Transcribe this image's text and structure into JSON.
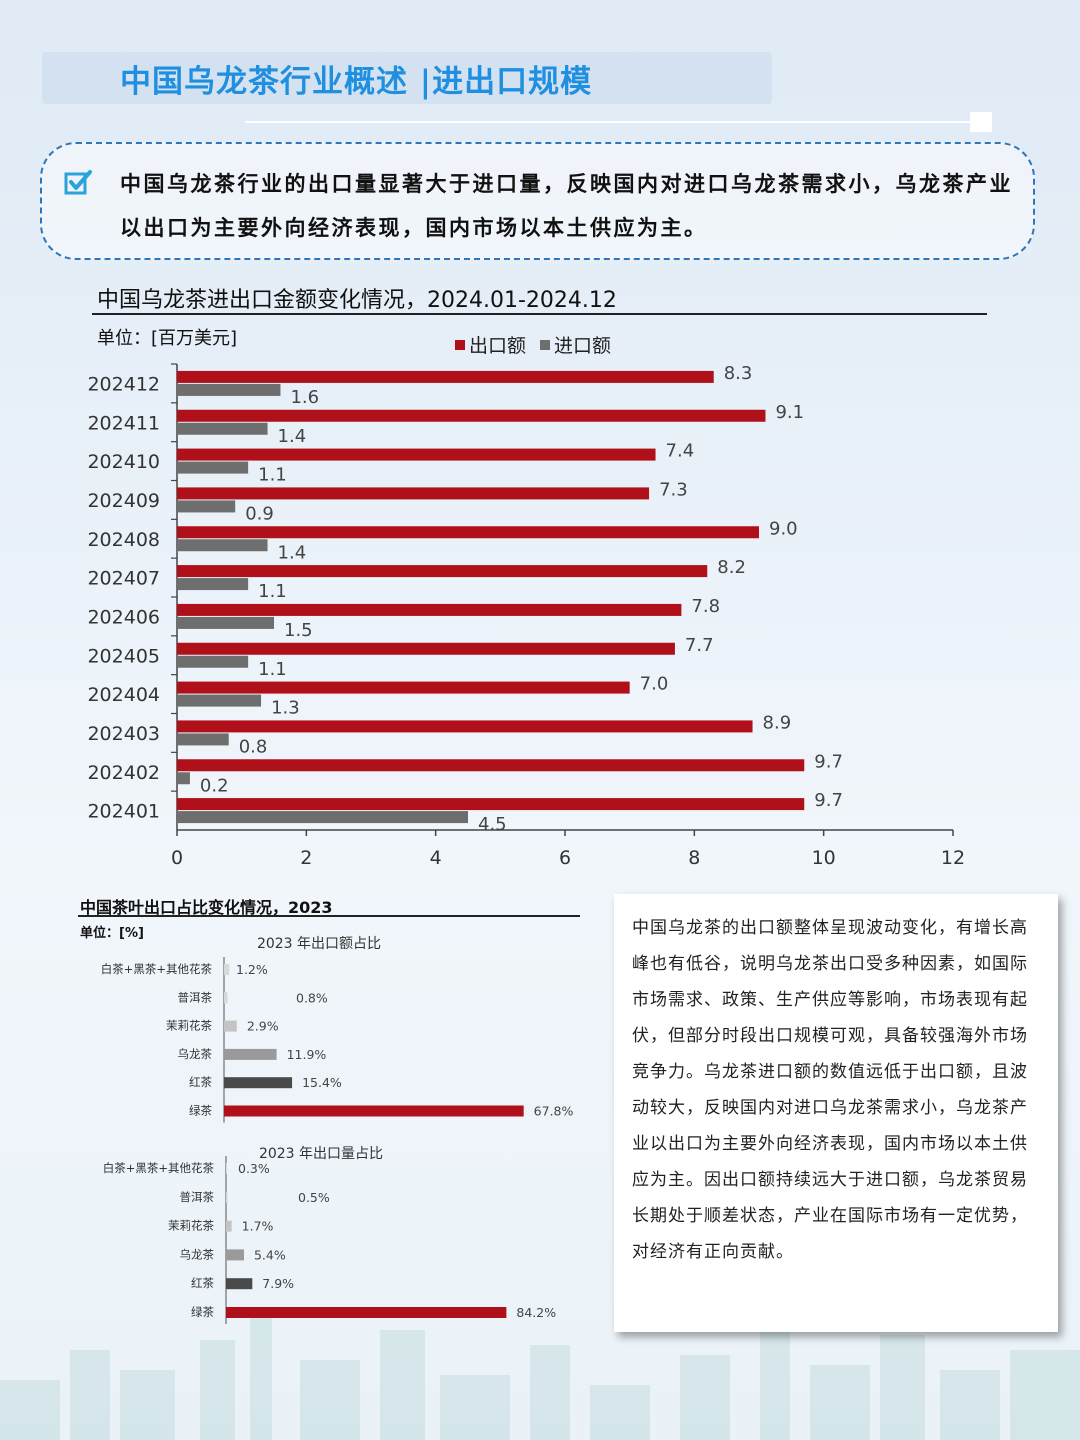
{
  "page": {
    "title": "中国乌龙茶行业概述 |进出口规模",
    "callout": "中国乌龙茶行业的出口量显著大于进口量，反映国内对进口乌龙茶需求小，乌龙茶产业以出口为主要外向经济表现，国内市场以本土供应为主。",
    "analysis": "中国乌龙茶的出口额整体呈现波动变化，有增长高峰也有低谷，说明乌龙茶出口受多种因素，如国际市场需求、政策、生产供应等影响，市场表现有起伏，但部分时段出口规模可观，具备较强海外市场竞争力。乌龙茶进口额的数值远低于出口额，且波动较大，反映国内对进口乌龙茶需求小，乌龙茶产业以出口为主要外向经济表现，国内市场以本土供应为主。因出口额持续远大于进口额，乌龙茶贸易长期处于顺差状态，产业在国际市场有一定优势，对经济有正向贡献。",
    "colors": {
      "accent": "#1f8fe0",
      "export": "#b0101a",
      "import": "#6e6e6e",
      "callout_border": "#2f76b8"
    }
  },
  "chart_data": [
    {
      "type": "bar",
      "orientation": "horizontal",
      "title": "中国乌龙茶进出口金额变化情况，2024.01-2024.12",
      "unit": "单位：[百万美元]",
      "categories": [
        "202412",
        "202411",
        "202410",
        "202409",
        "202408",
        "202407",
        "202406",
        "202405",
        "202404",
        "202403",
        "202402",
        "202401"
      ],
      "series": [
        {
          "name": "出口额",
          "color": "#b0101a",
          "values": [
            8.3,
            9.1,
            7.4,
            7.3,
            9.0,
            8.2,
            7.8,
            7.7,
            7.0,
            8.9,
            9.7,
            9.7
          ],
          "labels": [
            "8.3",
            "9.1",
            "7.4",
            "7.3",
            "9.0",
            "8.2",
            "7.8",
            "7.7",
            "7.0",
            "8.9",
            "9.7",
            "9.7"
          ]
        },
        {
          "name": "进口额",
          "color": "#6e6e6e",
          "values": [
            1.6,
            1.4,
            1.1,
            0.9,
            1.4,
            1.1,
            1.5,
            1.1,
            1.3,
            0.8,
            0.2,
            4.5
          ],
          "labels": [
            "1.6",
            "1.4",
            "1.1",
            "0.9",
            "1.4",
            "1.1",
            "1.5",
            "1.1",
            "1.3",
            "0.8",
            "0.2",
            "4.5"
          ]
        }
      ],
      "xlim": [
        0,
        12
      ],
      "xticks": [
        "0",
        "2",
        "4",
        "6",
        "8",
        "10",
        "12"
      ],
      "legend": "top"
    },
    {
      "type": "bar",
      "orientation": "horizontal",
      "title": "中国茶叶出口占比变化情况，2023",
      "unit": "单位：[%]",
      "panels": [
        {
          "subtitle": "2023 年出口额占比",
          "categories": [
            "白茶+黑茶+其他花茶",
            "普洱茶",
            "茉莉花茶",
            "乌龙茶",
            "红茶",
            "绿茶"
          ],
          "values": [
            1.2,
            0.8,
            2.9,
            11.9,
            15.4,
            67.8
          ],
          "labels": [
            "1.2%",
            "0.8%",
            "2.9%",
            "11.9%",
            "15.4%",
            "67.8%"
          ],
          "colors": [
            "#d8d8d8",
            "#d8d8d8",
            "#c4c4c4",
            "#9a9a9a",
            "#4a4a4a",
            "#b0101a"
          ]
        },
        {
          "subtitle": "2023 年出口量占比",
          "categories": [
            "白茶+黑茶+其他花茶",
            "普洱茶",
            "茉莉花茶",
            "乌龙茶",
            "红茶",
            "绿茶"
          ],
          "values": [
            0.3,
            0.5,
            1.7,
            5.4,
            7.9,
            84.2
          ],
          "labels": [
            "0.3%",
            "0.5%",
            "1.7%",
            "5.4%",
            "7.9%",
            "84.2%"
          ],
          "colors": [
            "#d8d8d8",
            "#d8d8d8",
            "#c4c4c4",
            "#9a9a9a",
            "#4a4a4a",
            "#b0101a"
          ]
        }
      ]
    }
  ]
}
